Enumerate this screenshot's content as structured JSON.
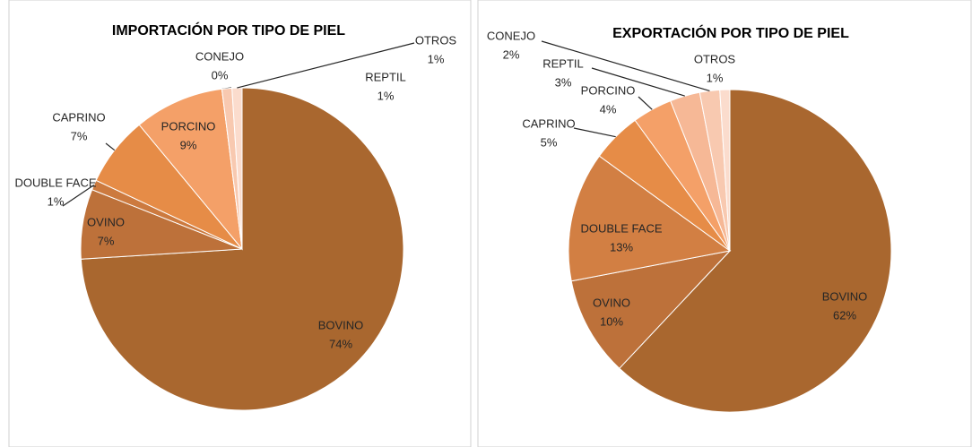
{
  "chart_data": [
    {
      "type": "pie",
      "title": "IMPORTACIÓN POR TIPO DE PIEL",
      "categories": [
        "BOVINO",
        "OVINO",
        "DOUBLE FACE",
        "CAPRINO",
        "PORCINO",
        "CONEJO",
        "REPTIL",
        "OTROS"
      ],
      "values": [
        74,
        7,
        1,
        7,
        9,
        0,
        1,
        1
      ],
      "value_labels": [
        "74%",
        "7%",
        "1%",
        "7%",
        "9%",
        "0%",
        "1%",
        "1%"
      ],
      "colors": [
        "#a9672f",
        "#bd713a",
        "#cc7a3f",
        "#e68c47",
        "#f4a068",
        "#f6b896",
        "#f8c9b0",
        "#fbdccd"
      ]
    },
    {
      "type": "pie",
      "title": "EXPORTACIÓN POR TIPO DE PIEL",
      "categories": [
        "BOVINO",
        "OVINO",
        "DOUBLE FACE",
        "CAPRINO",
        "PORCINO",
        "REPTIL",
        "CONEJO",
        "OTROS"
      ],
      "values": [
        62,
        10,
        13,
        5,
        4,
        3,
        2,
        1
      ],
      "value_labels": [
        "62%",
        "10%",
        "13%",
        "5%",
        "4%",
        "3%",
        "2%",
        "1%"
      ],
      "colors": [
        "#a9672f",
        "#bd713a",
        "#d27f43",
        "#e68c47",
        "#f4a068",
        "#f6b896",
        "#f8c9b0",
        "#fbdccd"
      ]
    }
  ]
}
